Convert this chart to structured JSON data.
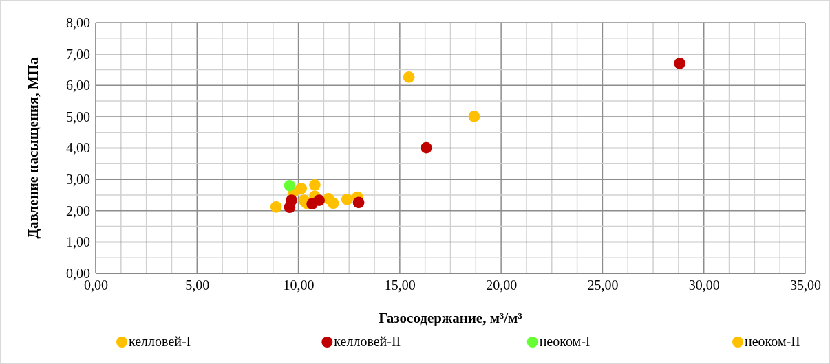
{
  "chart_data": {
    "type": "scatter",
    "xlabel": "Газосодержание, м³/м³",
    "ylabel": "Давление насыщения, МПа",
    "xlim": [
      0,
      35
    ],
    "ylim": [
      0,
      8
    ],
    "xticks": [
      {
        "value": 0,
        "label": "0,00"
      },
      {
        "value": 1.25,
        "label": null
      },
      {
        "value": 2.5,
        "label": null
      },
      {
        "value": 3.75,
        "label": null
      },
      {
        "value": 5,
        "label": "5,00"
      },
      {
        "value": 6.25,
        "label": null
      },
      {
        "value": 7.5,
        "label": null
      },
      {
        "value": 8.75,
        "label": null
      },
      {
        "value": 10,
        "label": "10,00"
      },
      {
        "value": 11.25,
        "label": null
      },
      {
        "value": 12.5,
        "label": null
      },
      {
        "value": 13.75,
        "label": null
      },
      {
        "value": 15,
        "label": "15,00"
      },
      {
        "value": 16.25,
        "label": null
      },
      {
        "value": 17.5,
        "label": null
      },
      {
        "value": 18.75,
        "label": null
      },
      {
        "value": 20,
        "label": "20,00"
      },
      {
        "value": 21.25,
        "label": null
      },
      {
        "value": 22.5,
        "label": null
      },
      {
        "value": 23.75,
        "label": null
      },
      {
        "value": 25,
        "label": "25,00"
      },
      {
        "value": 26.25,
        "label": null
      },
      {
        "value": 27.5,
        "label": null
      },
      {
        "value": 28.75,
        "label": null
      },
      {
        "value": 30,
        "label": "30,00"
      },
      {
        "value": 31.25,
        "label": null
      },
      {
        "value": 32.5,
        "label": null
      },
      {
        "value": 33.75,
        "label": null
      },
      {
        "value": 35,
        "label": "35,00"
      }
    ],
    "yticks": [
      {
        "value": 0,
        "label": "0,00"
      },
      {
        "value": 0.5,
        "label": null
      },
      {
        "value": 1,
        "label": "1,00"
      },
      {
        "value": 1.5,
        "label": null
      },
      {
        "value": 2,
        "label": "2,00"
      },
      {
        "value": 2.5,
        "label": null
      },
      {
        "value": 3,
        "label": "3,00"
      },
      {
        "value": 3.5,
        "label": null
      },
      {
        "value": 4,
        "label": "4,00"
      },
      {
        "value": 4.5,
        "label": null
      },
      {
        "value": 5,
        "label": "5,00"
      },
      {
        "value": 5.5,
        "label": null
      },
      {
        "value": 6,
        "label": "6,00"
      },
      {
        "value": 6.5,
        "label": null
      },
      {
        "value": 7,
        "label": "7,00"
      },
      {
        "value": 7.5,
        "label": null
      },
      {
        "value": 8,
        "label": "8,00"
      }
    ],
    "grid": true,
    "legend": "bottom",
    "marker": "circle",
    "series": [
      {
        "name": "келловей-I",
        "color": "#ffc000",
        "x": [
          15.45,
          18.67
        ],
        "values": [
          6.26,
          5.01
        ]
      },
      {
        "name": "келловей-II",
        "color": "#c00000",
        "x": [
          9.66,
          9.57,
          10.68,
          11.02,
          12.97,
          16.31,
          28.81
        ],
        "values": [
          2.33,
          2.11,
          2.22,
          2.33,
          2.26,
          4.01,
          6.7
        ]
      },
      {
        "name": "неоком-I",
        "color": "#66ff33",
        "x": [
          9.57
        ],
        "values": [
          2.8
        ]
      },
      {
        "name": "неоком-II",
        "color": "#ffc000",
        "x": [
          8.9,
          9.75,
          10.14,
          10.81,
          10.28,
          10.4,
          10.81,
          11.49,
          11.72,
          12.4,
          12.91
        ],
        "values": [
          2.12,
          2.6,
          2.71,
          2.82,
          2.33,
          2.24,
          2.46,
          2.38,
          2.24,
          2.36,
          2.43
        ]
      }
    ]
  }
}
